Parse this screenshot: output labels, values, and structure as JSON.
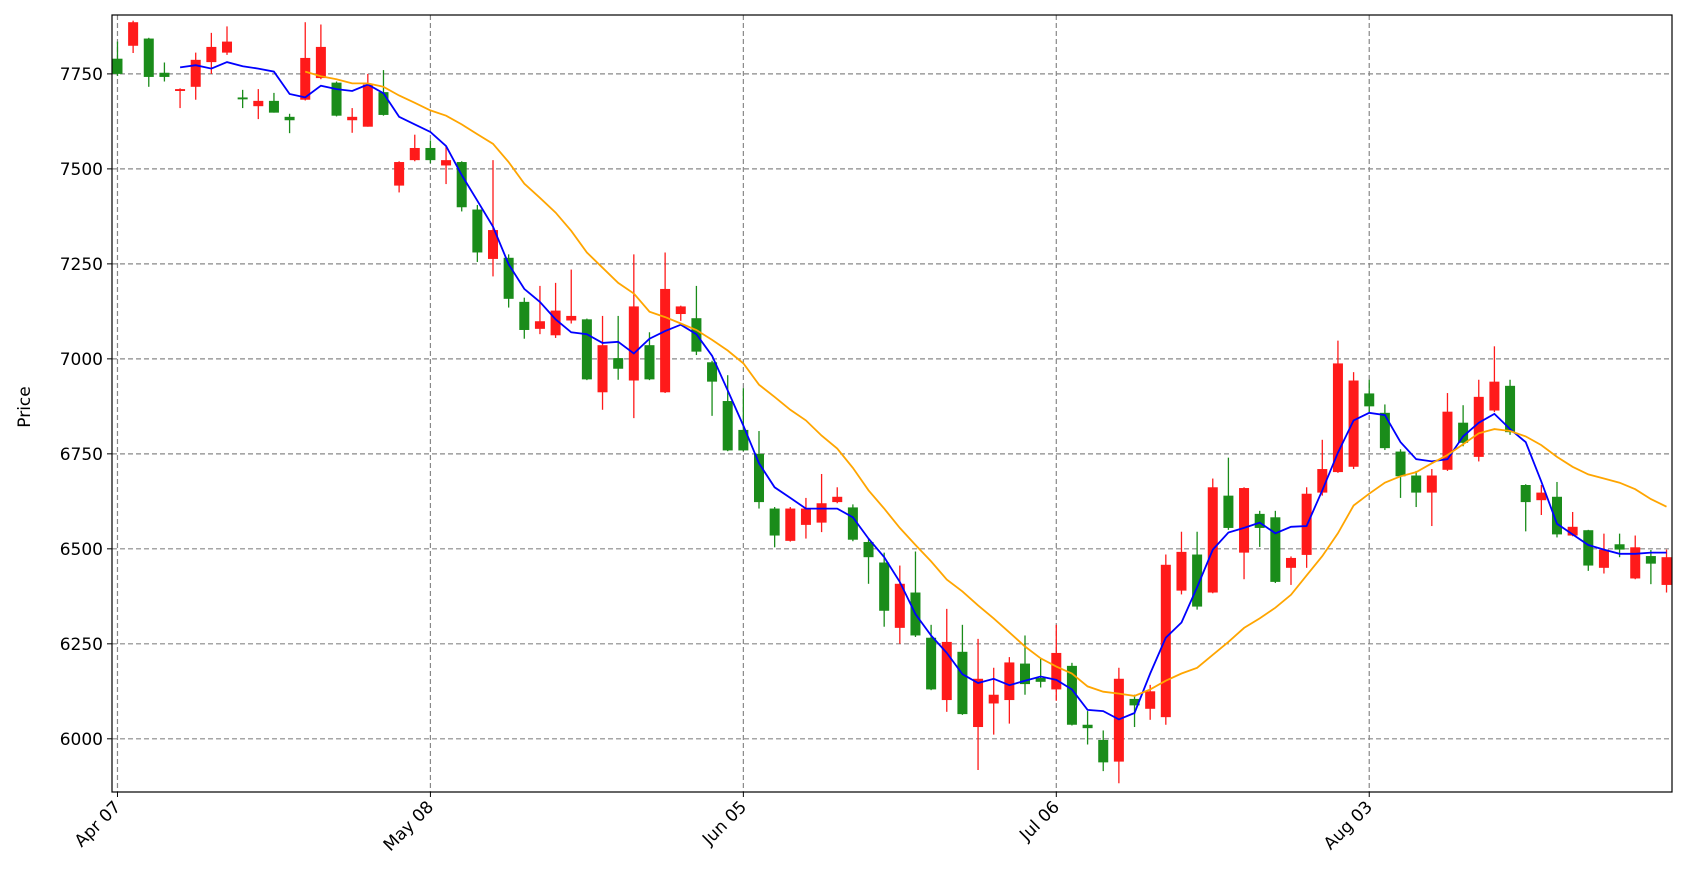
{
  "chart_data": {
    "type": "candlestick",
    "ylabel": "Price",
    "categories": [
      "Apr 07",
      null,
      null,
      null,
      null,
      null,
      null,
      null,
      null,
      null,
      null,
      null,
      null,
      null,
      null,
      null,
      null,
      null,
      null,
      null,
      "May 08",
      null,
      null,
      null,
      null,
      null,
      null,
      null,
      null,
      null,
      null,
      null,
      null,
      null,
      null,
      null,
      null,
      null,
      null,
      null,
      "Jun 05",
      null,
      null,
      null,
      null,
      null,
      null,
      null,
      null,
      null,
      null,
      null,
      null,
      null,
      null,
      null,
      null,
      null,
      null,
      null,
      "Jul 06",
      null,
      null,
      null,
      null,
      null,
      null,
      null,
      null,
      null,
      null,
      null,
      null,
      null,
      null,
      null,
      null,
      null,
      null,
      null,
      "Aug 03",
      null,
      null,
      null,
      null,
      null,
      null,
      null,
      null,
      null,
      null,
      null,
      null,
      null,
      null,
      null,
      null,
      null,
      null,
      null
    ],
    "open": [
      7790,
      7824,
      7843,
      7753,
      7705,
      7716,
      7781,
      7806,
      7688,
      7665,
      7679,
      7637,
      7682,
      7739,
      7727,
      7628,
      7611,
      7702,
      7456,
      7523,
      7555,
      7509,
      7518,
      7393,
      7263,
      7266,
      7150,
      7079,
      7062,
      7101,
      7104,
      6912,
      7002,
      6943,
      7036,
      6912,
      7118,
      7107,
      6991,
      6889,
      6813,
      6750,
      6606,
      6521,
      6563,
      6569,
      6623,
      6609,
      6518,
      6464,
      6292,
      6385,
      6266,
      6102,
      6229,
      6031,
      6093,
      6102,
      6198,
      6160,
      6130,
      6192,
      6037,
      5997,
      5940,
      6105,
      6079,
      6057,
      6390,
      6485,
      6385,
      6640,
      6490,
      6592,
      6583,
      6450,
      6484,
      6648,
      6702,
      6716,
      6909,
      6858,
      6756,
      6693,
      6648,
      6708,
      6832,
      6742,
      6864,
      6929,
      6668,
      6628,
      6637,
      6535,
      6549,
      6450,
      6512,
      6422,
      6481,
      6405
    ],
    "high": [
      7835,
      7890,
      7845,
      7780,
      7712,
      7806,
      7858,
      7875,
      7708,
      7710,
      7700,
      7645,
      7886,
      7880,
      7730,
      7660,
      7750,
      7760,
      7520,
      7590,
      7575,
      7560,
      7520,
      7405,
      7523,
      7275,
      7161,
      7192,
      7200,
      7235,
      7106,
      7113,
      7113,
      7275,
      7070,
      7280,
      7140,
      7192,
      6995,
      6957,
      6923,
      6810,
      6610,
      6610,
      6634,
      6697,
      6662,
      6617,
      6527,
      6490,
      6456,
      6493,
      6300,
      6342,
      6300,
      6263,
      6187,
      6215,
      6272,
      6210,
      6300,
      6200,
      6073,
      6022,
      6187,
      6116,
      6142,
      6485,
      6545,
      6545,
      6685,
      6740,
      6662,
      6600,
      6600,
      6480,
      6662,
      6787,
      7048,
      6965,
      6945,
      6880,
      6762,
      6705,
      6710,
      6910,
      6878,
      6945,
      7033,
      6945,
      6670,
      6668,
      6676,
      6597,
      6550,
      6540,
      6540,
      6535,
      6497,
      6498
    ],
    "low": [
      7745,
      7805,
      7716,
      7730,
      7660,
      7682,
      7750,
      7800,
      7660,
      7631,
      7648,
      7594,
      7680,
      7736,
      7638,
      7595,
      7611,
      7640,
      7438,
      7520,
      7515,
      7460,
      7388,
      7255,
      7217,
      7135,
      7053,
      7065,
      7055,
      7093,
      6944,
      6866,
      6945,
      6844,
      6944,
      6910,
      7100,
      7010,
      6850,
      6757,
      6757,
      6606,
      6504,
      6519,
      6527,
      6544,
      6620,
      6520,
      6408,
      6295,
      6250,
      6268,
      6128,
      6071,
      6063,
      5918,
      6011,
      6040,
      6116,
      6135,
      6100,
      6035,
      5985,
      5915,
      5883,
      6031,
      6050,
      6037,
      6380,
      6340,
      6383,
      6550,
      6420,
      6505,
      6410,
      6405,
      6450,
      6640,
      6700,
      6710,
      6860,
      6760,
      6634,
      6610,
      6560,
      6705,
      6770,
      6730,
      6860,
      6800,
      6546,
      6589,
      6530,
      6533,
      6442,
      6435,
      6478,
      6420,
      6407,
      6385
    ],
    "close": [
      7750,
      7886,
      7742,
      7742,
      7710,
      7787,
      7821,
      7835,
      7683,
      7679,
      7648,
      7628,
      7792,
      7821,
      7640,
      7637,
      7722,
      7642,
      7518,
      7555,
      7523,
      7523,
      7399,
      7280,
      7339,
      7158,
      7076,
      7099,
      7127,
      7113,
      6946,
      7036,
      6974,
      7138,
      6946,
      7184,
      7138,
      7019,
      6940,
      6759,
      6759,
      6623,
      6535,
      6606,
      6606,
      6620,
      6637,
      6524,
      6478,
      6337,
      6408,
      6272,
      6130,
      6255,
      6065,
      6158,
      6116,
      6201,
      6144,
      6150,
      6226,
      6037,
      6028,
      5938,
      6158,
      6088,
      6125,
      6458,
      6492,
      6348,
      6662,
      6555,
      6660,
      6555,
      6413,
      6476,
      6645,
      6710,
      6988,
      6943,
      6875,
      6765,
      6691,
      6648,
      6693,
      6861,
      6779,
      6900,
      6940,
      6807,
      6623,
      6648,
      6538,
      6558,
      6456,
      6498,
      6498,
      6504,
      6461,
      6478
    ],
    "up_color": "#ff1a1a",
    "down_color": "#1a8c1a",
    "overlays": [
      {
        "color": "#0000ff",
        "values": [
          null,
          null,
          null,
          null,
          7767,
          7773,
          7764,
          7781,
          7770,
          7764,
          7756,
          7697,
          7688,
          7719,
          7710,
          7705,
          7722,
          7699,
          7637,
          7617,
          7597,
          7560,
          7484,
          7416,
          7348,
          7249,
          7184,
          7150,
          7104,
          7070,
          7065,
          7042,
          7045,
          7014,
          7053,
          7073,
          7090,
          7065,
          7008,
          6917,
          6824,
          6725,
          6662,
          6634,
          6606,
          6606,
          6606,
          6583,
          6527,
          6478,
          6413,
          6328,
          6272,
          6226,
          6170,
          6147,
          6158,
          6141,
          6153,
          6164,
          6155,
          6130,
          6076,
          6073,
          6051,
          6068,
          6172,
          6266,
          6306,
          6399,
          6498,
          6543,
          6555,
          6569,
          6541,
          6558,
          6560,
          6654,
          6753,
          6838,
          6858,
          6852,
          6781,
          6736,
          6730,
          6736,
          6796,
          6832,
          6855,
          6815,
          6781,
          6677,
          6566,
          6538,
          6510,
          6498,
          6487,
          6487,
          6490,
          6490
        ]
      },
      {
        "color": "#ffa500",
        "values": [
          null,
          null,
          null,
          null,
          null,
          null,
          null,
          null,
          null,
          null,
          null,
          null,
          7756,
          7744,
          7736,
          7725,
          7725,
          7716,
          7693,
          7674,
          7654,
          7640,
          7617,
          7591,
          7566,
          7518,
          7461,
          7424,
          7385,
          7337,
          7280,
          7240,
          7200,
          7172,
          7124,
          7110,
          7093,
          7076,
          7050,
          7022,
          6988,
          6932,
          6900,
          6866,
          6838,
          6798,
          6764,
          6713,
          6654,
          6606,
          6555,
          6510,
          6467,
          6419,
          6388,
          6351,
          6317,
          6280,
          6243,
          6212,
          6190,
          6172,
          6138,
          6124,
          6119,
          6113,
          6130,
          6153,
          6172,
          6187,
          6221,
          6255,
          6292,
          6317,
          6345,
          6379,
          6430,
          6481,
          6541,
          6614,
          6645,
          6674,
          6691,
          6702,
          6725,
          6747,
          6775,
          6804,
          6815,
          6810,
          6796,
          6773,
          6742,
          6716,
          6696,
          6685,
          6674,
          6657,
          6631,
          6611
        ]
      }
    ],
    "ylim": [
      5860,
      7905
    ],
    "yticks": [
      6000,
      6250,
      6500,
      6750,
      7000,
      7250,
      7500,
      7750
    ],
    "grid": true
  }
}
